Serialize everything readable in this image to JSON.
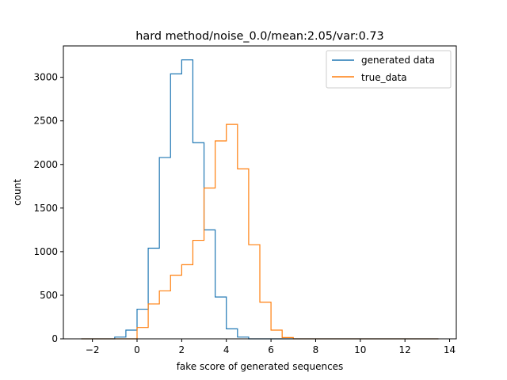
{
  "chart_data": {
    "type": "histogram",
    "title": "hard method/noise_0.0/mean:2.05/var:0.73",
    "xlabel": "fake score of generated sequences",
    "ylabel": "count",
    "xlim": [
      -3.3,
      14.3
    ],
    "ylim": [
      0,
      3360
    ],
    "x_ticks": [
      -2,
      0,
      2,
      4,
      6,
      8,
      10,
      12,
      14
    ],
    "x_tick_labels": [
      "−2",
      "0",
      "2",
      "4",
      "6",
      "8",
      "10",
      "12",
      "14"
    ],
    "y_ticks": [
      0,
      500,
      1000,
      1500,
      2000,
      2500,
      3000
    ],
    "y_tick_labels": [
      "0",
      "500",
      "1000",
      "1500",
      "2000",
      "2500",
      "3000"
    ],
    "grid": false,
    "legend_position": "top-right",
    "bin_start": -2.5,
    "bin_width": 0.5,
    "series": [
      {
        "name": "generated data",
        "color": "#1f77b4",
        "counts": [
          0,
          0,
          0,
          20,
          100,
          340,
          1040,
          2080,
          3040,
          3200,
          2250,
          1250,
          480,
          115,
          20,
          0,
          0,
          0,
          0,
          0,
          0,
          0,
          0,
          0,
          0,
          0,
          0,
          0,
          0,
          0,
          0,
          0
        ]
      },
      {
        "name": "true_data",
        "color": "#ff7f0e",
        "counts": [
          0,
          0,
          0,
          0,
          0,
          130,
          400,
          550,
          730,
          850,
          1130,
          1730,
          2270,
          2460,
          1950,
          1080,
          420,
          100,
          15,
          0,
          0,
          0,
          0,
          0,
          0,
          0,
          0,
          0,
          0,
          0,
          0,
          0
        ]
      }
    ]
  }
}
